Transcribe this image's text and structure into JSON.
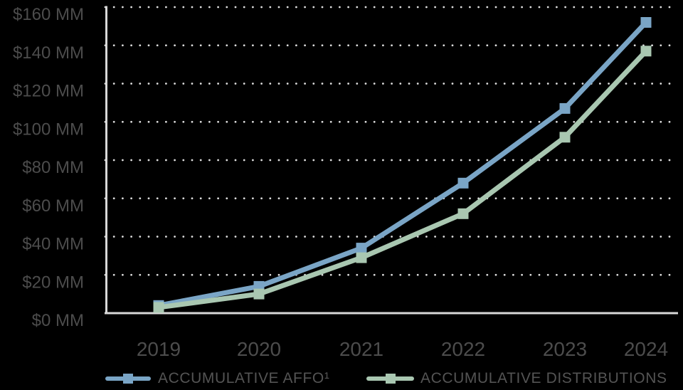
{
  "chart_data": {
    "type": "line",
    "title": "",
    "categories": [
      "2019",
      "2020",
      "2021",
      "2022",
      "2023",
      "2024"
    ],
    "series": [
      {
        "name": "ACCUMULATIVE AFFO¹",
        "color": "#7AA5C6",
        "marker": "square",
        "values": [
          4,
          14,
          34,
          68,
          107,
          152
        ]
      },
      {
        "name": "ACCUMULATIVE DISTRIBUTIONS",
        "color": "#A9C7B1",
        "marker": "square",
        "values": [
          3,
          10,
          29,
          52,
          92,
          137
        ]
      }
    ],
    "y_axis": {
      "tick_labels": [
        "$0 MM",
        "$20 MM",
        "$40 MM",
        "$60 MM",
        "$80 MM",
        "$100 MM",
        "$120 MM",
        "$140 MM",
        "$160 MM"
      ],
      "min": 0,
      "max": 160,
      "step": 20
    },
    "grid": "horizontal-dotted",
    "legend_position": "bottom",
    "colors": {
      "background": "#000000",
      "axis_line": "#D8D8D8",
      "grid_dot": "#DEDEDE",
      "tick_label": "#4C4C4C",
      "legend_text": "#545454"
    }
  }
}
